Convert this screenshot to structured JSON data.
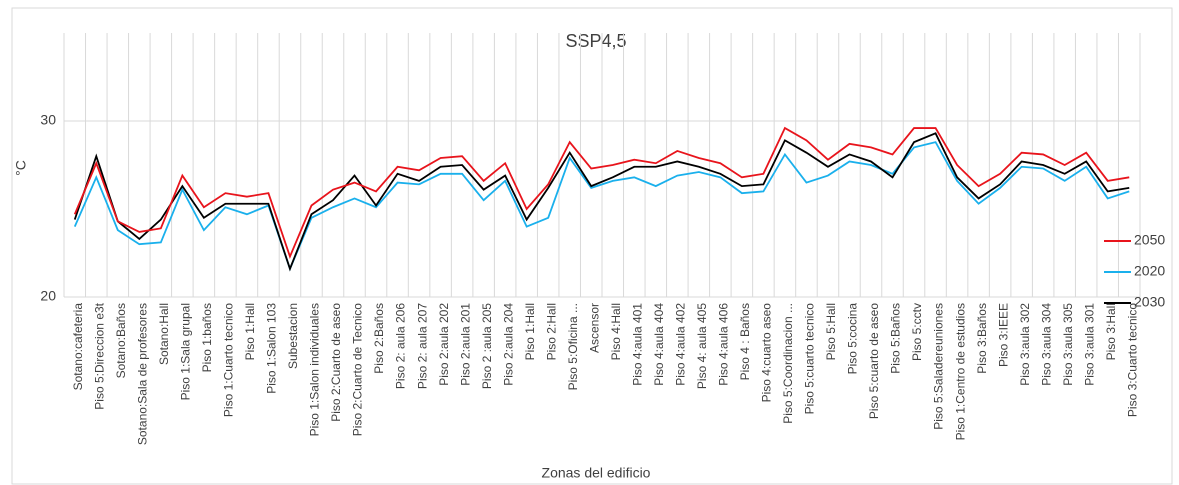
{
  "chart_data": {
    "type": "line",
    "title": "SSP4,5",
    "ylabel": "°C",
    "xlabel": "Zonas del edificio",
    "categories": [
      "Sotano:cafeteria",
      "Piso 5:Direccion e3t",
      "Sotano:Baños",
      "Sotano:Sala de profesores",
      "Sotano:Hall",
      "Piso 1:Sala grupal",
      "Piso 1:baños",
      "Piso 1:Cuarto tecnico",
      "Piso 1:Hall",
      "Piso 1:Salon 103",
      "Subestacion",
      "Piso 1:Salon individuales",
      "Piso 2:Cuarto de aseo",
      "Piso 2:Cuarto de Tecnico",
      "Piso 2:Baños",
      "Piso 2: aula 206",
      "Piso 2: aula 207",
      "Piso 2:aula 202",
      "Piso 2:aula 201",
      "Piso 2 :aula 205",
      "Piso 2:aula 204",
      "Piso 1:Hall",
      "Piso 2:Hall",
      "Piso 5:Oficina ...",
      "Ascensor",
      "Piso 4:Hall",
      "Piso 4:aula 401",
      "Piso 4:aula 404",
      "Piso 4:aula 402",
      "Piso 4: aula 405",
      "Piso 4:aula 406",
      "Piso 4 : Baños",
      "Piso 4:cuarto aseo",
      "Piso 5:Coordinacion ...",
      "Piso 5:cuarto tecnico",
      "Piso 5:Hall",
      "Piso 5:cocina",
      "Piso 5:cuarto de aseo",
      "Piso 5:Baños",
      "Piso 5:cctv",
      "Piso 5:Saladereuniones",
      "Piso 1:Centro de estudios",
      "Piso 3:Baños",
      "Piso 3:IEEE",
      "Piso 3:aula 302",
      "Piso 3:aula 304",
      "Piso 3:aula 305",
      "Piso 3:aula 301",
      "Piso 3:Hall",
      "Piso 3:Cuarto tecnico"
    ],
    "series": [
      {
        "name": "2050",
        "color": "#e8141c",
        "values": [
          24.7,
          27.6,
          24.3,
          23.7,
          23.9,
          26.9,
          25.1,
          25.9,
          25.7,
          25.9,
          22.3,
          25.2,
          26.1,
          26.5,
          26.0,
          27.4,
          27.2,
          27.9,
          28.0,
          26.6,
          27.6,
          25.0,
          26.4,
          28.8,
          27.3,
          27.5,
          27.8,
          27.6,
          28.3,
          27.9,
          27.6,
          26.8,
          27.0,
          29.6,
          28.9,
          27.8,
          28.7,
          28.5,
          28.1,
          29.6,
          29.6,
          27.5,
          26.3,
          27.0,
          28.2,
          28.1,
          27.5,
          28.2,
          26.6,
          26.8
        ]
      },
      {
        "name": "2020",
        "color": "#1ab0ec",
        "values": [
          24.0,
          26.8,
          23.8,
          23.0,
          23.1,
          26.1,
          23.8,
          25.1,
          24.7,
          25.2,
          21.6,
          24.5,
          25.1,
          25.6,
          25.1,
          26.5,
          26.4,
          27.0,
          27.0,
          25.5,
          26.6,
          24.0,
          24.5,
          27.9,
          26.2,
          26.6,
          26.8,
          26.3,
          26.9,
          27.1,
          26.8,
          25.9,
          26.0,
          28.1,
          26.5,
          26.9,
          27.7,
          27.5,
          27.0,
          28.5,
          28.8,
          26.6,
          25.3,
          26.2,
          27.4,
          27.3,
          26.6,
          27.4,
          25.6,
          26.0
        ]
      },
      {
        "name": "2030",
        "color": "#000000",
        "values": [
          24.4,
          28.0,
          24.3,
          23.3,
          24.4,
          26.3,
          24.5,
          25.3,
          25.3,
          25.3,
          21.6,
          24.7,
          25.5,
          26.9,
          25.2,
          27.0,
          26.6,
          27.4,
          27.5,
          26.1,
          26.9,
          24.4,
          26.2,
          28.2,
          26.3,
          26.8,
          27.4,
          27.4,
          27.7,
          27.4,
          27.0,
          26.3,
          26.4,
          28.9,
          28.2,
          27.4,
          28.1,
          27.7,
          26.8,
          28.8,
          29.3,
          26.8,
          25.6,
          26.4,
          27.7,
          27.5,
          27.0,
          27.7,
          26.0,
          26.2
        ]
      }
    ],
    "ylim": [
      20,
      35
    ],
    "yticks": [
      20,
      30
    ],
    "grid": true,
    "legend": "right"
  }
}
